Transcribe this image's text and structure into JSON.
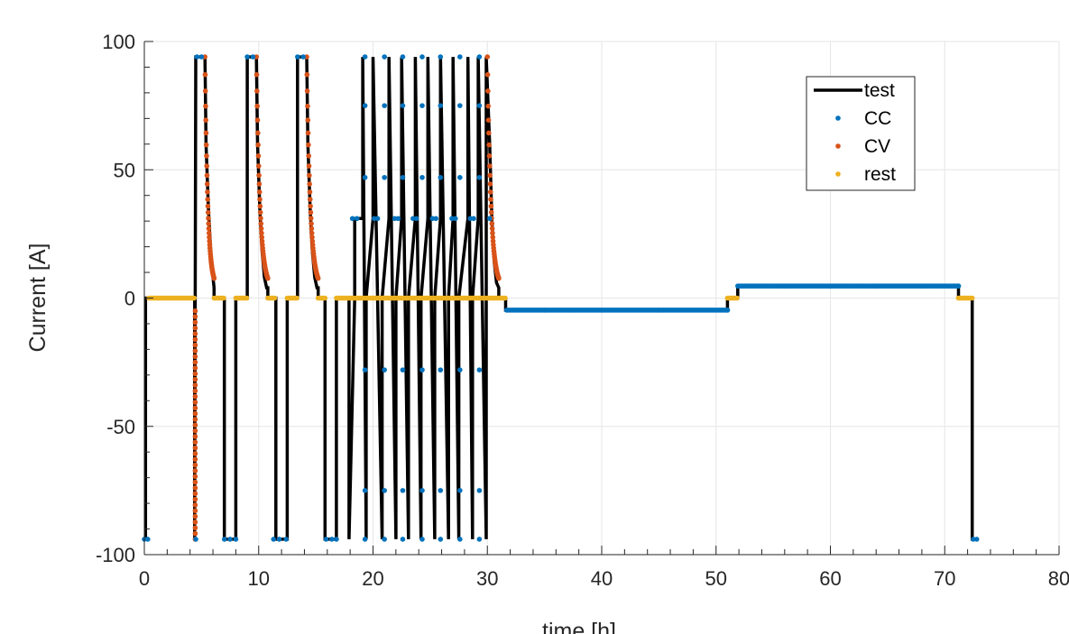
{
  "chart_data": {
    "type": "line",
    "xlabel": "time [h]",
    "ylabel": "Current [A]",
    "xlim": [
      0,
      80
    ],
    "ylim": [
      -100,
      100
    ],
    "x_ticks": [
      0,
      10,
      20,
      30,
      40,
      50,
      60,
      70,
      80
    ],
    "y_ticks": [
      -100,
      -50,
      0,
      50,
      100
    ],
    "x_tick_labels": [
      "0",
      "10",
      "20",
      "30",
      "40",
      "50",
      "60",
      "70",
      "80"
    ],
    "y_tick_labels": [
      "-100",
      "-50",
      "0",
      "50",
      "100"
    ],
    "grid": true,
    "legend_position": "top-right",
    "colors": {
      "test": "#000000",
      "CC": "#0072BD",
      "CV": "#D95319",
      "rest": "#EDB120",
      "grid": "#e6e6e6",
      "axis": "#262626"
    },
    "series": [
      {
        "name": "test",
        "style": "line",
        "x": [
          0,
          0.1,
          0.1,
          0.4,
          0.4,
          4.4,
          4.4,
          4.5,
          4.7,
          4.7,
          5.3,
          5.4,
          5.6,
          5.8,
          6.0,
          6.1,
          6.1,
          7.0,
          7.0,
          8.0,
          8.0,
          9.0,
          9.0,
          9.8,
          9.9,
          10.1,
          10.3,
          10.5,
          10.7,
          10.8,
          10.8,
          11.5,
          11.5,
          12.5,
          12.5,
          13.4,
          13.4,
          14.2,
          14.3,
          14.5,
          14.7,
          14.9,
          15.1,
          15.2,
          15.2,
          15.8,
          15.8,
          16.8,
          16.8,
          17.9,
          17.9,
          18.4,
          18.4,
          19.1,
          19.1,
          19.4,
          19.4,
          20.0,
          20.0,
          20.8,
          20.8,
          21.4,
          21.4,
          22.0,
          22.0,
          22.5,
          22.5,
          23.1,
          23.1,
          23.7,
          23.7,
          24.2,
          24.2,
          24.8,
          24.8,
          25.4,
          25.4,
          25.9,
          25.9,
          26.6,
          26.6,
          27.0,
          27.0,
          27.5,
          27.5,
          28.3,
          28.3,
          28.7,
          28.7,
          29.2,
          29.2,
          29.9,
          29.9,
          30.2,
          30.4,
          30.6,
          30.8,
          31.0,
          31.0,
          31.6,
          31.6,
          51.0,
          51.0,
          51.9,
          51.9,
          71.2,
          71.2,
          72.4,
          72.4,
          72.8
        ],
        "y": [
          -94,
          -94,
          0,
          0,
          0,
          0,
          -94,
          94,
          94,
          94,
          94,
          60,
          35,
          18,
          8,
          4,
          0,
          0,
          -94,
          -94,
          0,
          0,
          94,
          94,
          60,
          35,
          18,
          8,
          4,
          4,
          0,
          0,
          -94,
          -94,
          0,
          0,
          94,
          94,
          60,
          35,
          18,
          8,
          4,
          4,
          0,
          0,
          -94,
          -94,
          0,
          0,
          -94,
          0,
          31,
          31,
          94,
          -94,
          0,
          31,
          94,
          -94,
          0,
          31,
          94,
          -94,
          0,
          31,
          94,
          -94,
          0,
          31,
          94,
          -94,
          0,
          31,
          94,
          -94,
          0,
          31,
          94,
          -94,
          0,
          31,
          94,
          -94,
          0,
          31,
          94,
          -94,
          0,
          31,
          94,
          -94,
          94,
          60,
          30,
          14,
          6,
          4,
          0,
          0,
          -4.7,
          -4.7,
          0,
          0,
          4.7,
          4.7,
          0,
          0,
          -94,
          -94
        ]
      },
      {
        "name": "CC",
        "style": "markers",
        "points": [
          [
            0,
            -94
          ],
          [
            0.3,
            -94
          ],
          [
            4.5,
            -94
          ],
          [
            4.6,
            94
          ],
          [
            5.0,
            94
          ],
          [
            7.0,
            -94
          ],
          [
            7.5,
            -94
          ],
          [
            8.0,
            -94
          ],
          [
            9.0,
            94
          ],
          [
            9.5,
            94
          ],
          [
            11.3,
            -94
          ],
          [
            11.8,
            -94
          ],
          [
            12.4,
            -94
          ],
          [
            13.4,
            94
          ],
          [
            13.9,
            94
          ],
          [
            15.9,
            -94
          ],
          [
            16.4,
            -94
          ],
          [
            16.8,
            -94
          ],
          [
            18.2,
            31
          ],
          [
            18.6,
            31
          ],
          [
            19.3,
            94
          ],
          [
            19.3,
            75
          ],
          [
            19.3,
            47
          ],
          [
            19.3,
            -28
          ],
          [
            19.3,
            -75
          ],
          [
            19.3,
            -94
          ],
          [
            20.1,
            31
          ],
          [
            20.4,
            31
          ],
          [
            21.0,
            94
          ],
          [
            21.0,
            75
          ],
          [
            21.0,
            47
          ],
          [
            21.0,
            -28
          ],
          [
            21.0,
            -75
          ],
          [
            21.0,
            -94
          ],
          [
            21.9,
            31
          ],
          [
            22.2,
            31
          ],
          [
            22.6,
            94
          ],
          [
            22.6,
            75
          ],
          [
            22.6,
            47
          ],
          [
            22.6,
            -28
          ],
          [
            22.6,
            -75
          ],
          [
            22.6,
            -94
          ],
          [
            23.5,
            31
          ],
          [
            23.8,
            31
          ],
          [
            24.3,
            94
          ],
          [
            24.3,
            75
          ],
          [
            24.3,
            47
          ],
          [
            24.3,
            -28
          ],
          [
            24.3,
            -75
          ],
          [
            24.3,
            -94
          ],
          [
            25.2,
            31
          ],
          [
            25.5,
            31
          ],
          [
            25.9,
            94
          ],
          [
            25.9,
            75
          ],
          [
            25.9,
            47
          ],
          [
            25.9,
            -28
          ],
          [
            25.9,
            -75
          ],
          [
            25.9,
            -94
          ],
          [
            26.9,
            31
          ],
          [
            27.2,
            31
          ],
          [
            27.6,
            94
          ],
          [
            27.6,
            75
          ],
          [
            27.6,
            47
          ],
          [
            27.6,
            -28
          ],
          [
            27.6,
            -75
          ],
          [
            27.6,
            -94
          ],
          [
            28.5,
            31
          ],
          [
            28.8,
            31
          ],
          [
            29.3,
            94
          ],
          [
            29.3,
            75
          ],
          [
            29.3,
            47
          ],
          [
            29.3,
            -28
          ],
          [
            29.3,
            -75
          ],
          [
            29.3,
            -94
          ],
          [
            30.2,
            31
          ],
          [
            31.7,
            -4.7
          ],
          [
            35,
            -4.7
          ],
          [
            40,
            -4.7
          ],
          [
            45,
            -4.7
          ],
          [
            51,
            -4.7
          ],
          [
            52,
            4.7
          ],
          [
            56,
            4.7
          ],
          [
            60,
            4.7
          ],
          [
            64,
            4.7
          ],
          [
            68,
            4.7
          ],
          [
            71.2,
            4.7
          ],
          [
            72.5,
            -94
          ],
          [
            72.8,
            -94
          ]
        ],
        "segments": [
          [
            31.7,
            51.0,
            -4.7
          ],
          [
            51.9,
            71.2,
            4.7
          ]
        ]
      },
      {
        "name": "CV",
        "style": "markers",
        "curves": [
          {
            "x_start": 5.3,
            "x_end": 6.1,
            "y_start": 94,
            "y_end": 4
          },
          {
            "x_start": 9.8,
            "x_end": 10.8,
            "y_start": 94,
            "y_end": 4
          },
          {
            "x_start": 14.2,
            "x_end": 15.2,
            "y_start": 94,
            "y_end": 4
          },
          {
            "x_start": 30.0,
            "x_end": 31.0,
            "y_start": 94,
            "y_end": 4
          },
          {
            "x_start": 4.45,
            "x_end": 4.45,
            "y_start": -94,
            "y_end": -5
          }
        ]
      },
      {
        "name": "rest",
        "style": "markers",
        "segments": [
          [
            0.4,
            4.4,
            0
          ],
          [
            6.1,
            7.0,
            0
          ],
          [
            8.0,
            9.0,
            0
          ],
          [
            10.8,
            11.5,
            0
          ],
          [
            12.5,
            13.4,
            0
          ],
          [
            15.2,
            15.8,
            0
          ],
          [
            16.8,
            31.6,
            0
          ],
          [
            51.0,
            51.9,
            0
          ],
          [
            71.2,
            72.4,
            0
          ]
        ]
      }
    ]
  }
}
